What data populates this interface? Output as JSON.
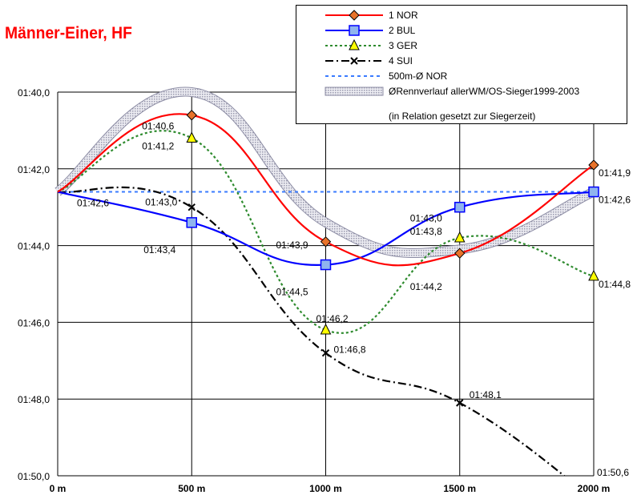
{
  "chart_data": {
    "type": "line",
    "title": "Männer-Einer, HF",
    "categories": [
      "0 m",
      "500 m",
      "1000 m",
      "1500 m",
      "2000 m"
    ],
    "y_tick_labels": [
      "01:40,0",
      "01:42,0",
      "01:44,0",
      "01:46,0",
      "01:48,0",
      "01:50,0"
    ],
    "ylim": [
      100.0,
      110.0
    ],
    "y_reversed": true,
    "grid": true,
    "legend_position": "top-right",
    "series": [
      {
        "name": "1 NOR",
        "color": "#ff0000",
        "dash": "solid",
        "marker": "diamond",
        "marker_fill": "#e8732a",
        "values": [
          102.6,
          100.6,
          103.9,
          104.2,
          101.9
        ],
        "labels": [
          null,
          "01:40,6",
          "01:43,9",
          "01:44,2",
          "01:41,9"
        ]
      },
      {
        "name": "2 BUL",
        "color": "#0000ff",
        "dash": "solid",
        "marker": "square",
        "marker_fill": "#8fb4ee",
        "values": [
          102.6,
          103.4,
          104.5,
          103.0,
          102.6
        ],
        "labels": [
          null,
          "01:43,4",
          "01:44,5",
          "01:43,0",
          "01:42,6"
        ]
      },
      {
        "name": "3 GER",
        "color": "#2e8b2e",
        "dash": "dotted",
        "marker": "triangle",
        "marker_fill": "#ffff00",
        "values": [
          102.6,
          101.2,
          106.2,
          103.8,
          104.8
        ],
        "labels": [
          null,
          "01:41,2",
          "01:46,2",
          "01:43,8",
          "01:44,8"
        ]
      },
      {
        "name": "4 SUI",
        "color": "#000000",
        "dash": "dashdot",
        "marker": "x",
        "marker_fill": "#000000",
        "values": [
          102.6,
          103.0,
          106.8,
          108.1,
          110.6
        ],
        "labels": [
          null,
          "01:43,0",
          "01:46,8",
          "01:48,1",
          "01:50,6"
        ]
      },
      {
        "name": "500m-Ø  NOR",
        "color": "#3a7bff",
        "dash": "dash",
        "marker": "none",
        "marker_fill": "#3a7bff",
        "values": [
          102.6,
          102.6,
          102.6,
          102.6,
          102.6
        ],
        "labels": [
          "01:42,6",
          null,
          null,
          null,
          null
        ]
      },
      {
        "name": "ØRennverlauf allerWM/OS-Sieger1999-2003",
        "color": "#b8b8c8",
        "dash": "band",
        "marker": "none",
        "marker_fill": "#b8b8c8",
        "values": [
          102.6,
          100.0,
          103.4,
          104.1,
          102.6
        ],
        "labels": [
          null,
          null,
          null,
          null,
          null
        ]
      }
    ],
    "legend_subtext": "(in Relation gesetzt zur Siegerzeit)"
  }
}
